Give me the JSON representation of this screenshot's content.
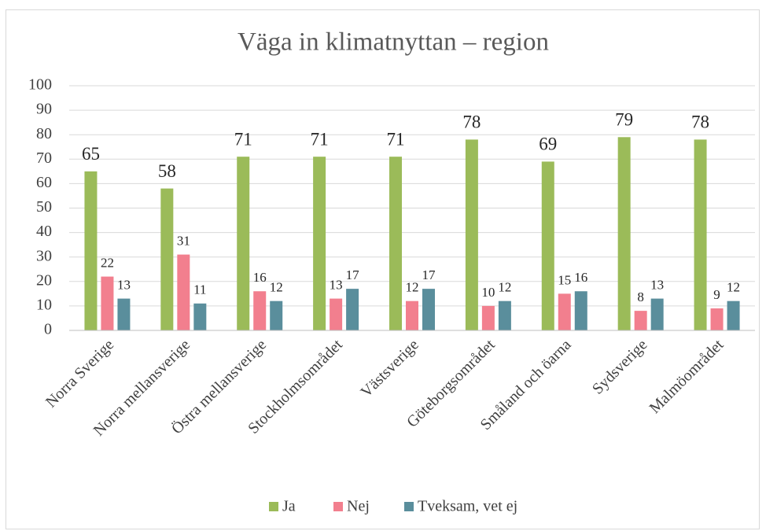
{
  "chart_data": {
    "type": "bar",
    "title": "Väga in klimatnyttan – region",
    "categories": [
      "Norra Sverige",
      "Norra mellansverige",
      "Östra mellansverige",
      "Stockholmsområdet",
      "Västsverige",
      "Göteborgsområdet",
      "Småland och öarna",
      "Sydsverige",
      "Malmöområdet"
    ],
    "series": [
      {
        "name": "Ja",
        "color": "#9bbb59",
        "values": [
          65,
          58,
          71,
          71,
          71,
          78,
          69,
          79,
          78
        ]
      },
      {
        "name": "Nej",
        "color": "#f27f8e",
        "values": [
          22,
          31,
          16,
          13,
          12,
          10,
          15,
          8,
          9
        ]
      },
      {
        "name": "Tveksam, vet ej",
        "color": "#5a8e9c",
        "values": [
          13,
          11,
          12,
          17,
          17,
          12,
          16,
          13,
          12
        ]
      }
    ],
    "ylim": [
      0,
      100
    ],
    "yticks": [
      0,
      10,
      20,
      30,
      40,
      50,
      60,
      70,
      80,
      90,
      100
    ],
    "grid": true,
    "legend": "bottom"
  }
}
